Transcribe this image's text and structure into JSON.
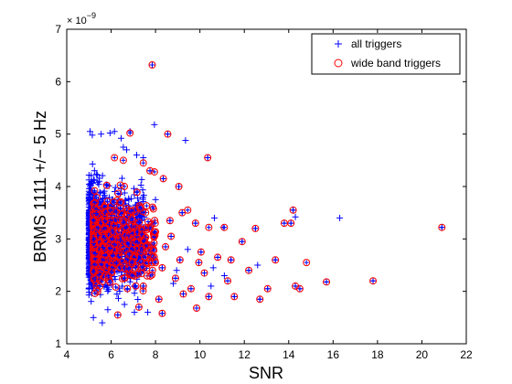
{
  "chart_data": {
    "type": "scatter",
    "title": "",
    "xlabel": "SNR",
    "ylabel": "BRMS 1111 +/− 5 Hz",
    "y_multiplier": {
      "base": "× 10",
      "exponent": "−9"
    },
    "xlim": [
      4,
      22
    ],
    "ylim": [
      1,
      7
    ],
    "xticks": [
      "4",
      "6",
      "8",
      "10",
      "12",
      "14",
      "16",
      "18",
      "20",
      "22"
    ],
    "yticks": [
      "1",
      "2",
      "3",
      "4",
      "5",
      "6",
      "7"
    ],
    "grid": false,
    "legend_position": "top-right",
    "colors": {
      "all_triggers": "#0000ff",
      "wide_band_triggers": "#ff0000"
    },
    "series": [
      {
        "name": "all triggers",
        "marker": "plus",
        "points": [
          [
            7.85,
            6.32
          ],
          [
            5.05,
            5.05
          ],
          [
            5.15,
            4.98
          ],
          [
            5.55,
            5.0
          ],
          [
            5.95,
            5.02
          ],
          [
            6.15,
            5.05
          ],
          [
            6.45,
            4.92
          ],
          [
            6.85,
            5.05
          ],
          [
            7.95,
            5.18
          ],
          [
            8.55,
            5.0
          ],
          [
            9.35,
            4.88
          ],
          [
            10.35,
            4.55
          ],
          [
            9.05,
            4.0
          ],
          [
            10.65,
            3.4
          ],
          [
            16.3,
            3.4
          ],
          [
            14.3,
            3.42
          ],
          [
            14.2,
            3.55
          ],
          [
            11.05,
            3.22
          ],
          [
            11.9,
            2.95
          ],
          [
            12.5,
            3.2
          ],
          [
            13.8,
            3.3
          ],
          [
            14.1,
            3.3
          ],
          [
            20.9,
            3.22
          ],
          [
            17.8,
            2.2
          ],
          [
            15.7,
            2.18
          ],
          [
            14.5,
            2.05
          ],
          [
            13.05,
            2.05
          ],
          [
            12.7,
            1.85
          ],
          [
            11.55,
            1.9
          ],
          [
            10.4,
            1.9
          ],
          [
            9.85,
            1.68
          ],
          [
            8.3,
            1.58
          ],
          [
            5.6,
            1.4
          ],
          [
            5.2,
            1.5
          ],
          [
            6.3,
            1.55
          ],
          [
            7.05,
            1.6
          ],
          [
            11.1,
            2.3
          ],
          [
            12.2,
            2.4
          ],
          [
            13.4,
            2.6
          ],
          [
            14.3,
            2.1
          ],
          [
            9.8,
            3.3
          ],
          [
            9.2,
            3.5
          ],
          [
            10.8,
            2.65
          ],
          [
            11.4,
            2.6
          ],
          [
            12.6,
            2.5
          ],
          [
            10.2,
            2.35
          ],
          [
            10.6,
            2.45
          ],
          [
            9.6,
            2.05
          ],
          [
            8.9,
            2.25
          ],
          [
            8.8,
            2.15
          ],
          [
            8.3,
            2.45
          ],
          [
            8.7,
            3.05
          ],
          [
            8.0,
            3.75
          ],
          [
            8.35,
            4.15
          ],
          [
            7.75,
            4.3
          ],
          [
            7.45,
            4.55
          ],
          [
            7.15,
            4.6
          ],
          [
            6.7,
            4.7
          ],
          [
            6.55,
            4.75
          ],
          [
            8.45,
            2.85
          ],
          [
            8.65,
            3.35
          ],
          [
            9.1,
            2.6
          ],
          [
            9.45,
            2.8
          ],
          [
            10.05,
            2.75
          ],
          [
            9.95,
            2.55
          ],
          [
            10.5,
            2.1
          ],
          [
            11.25,
            2.2
          ],
          [
            9.25,
            1.95
          ],
          [
            8.95,
            2.4
          ],
          [
            7.25,
            1.7
          ],
          [
            6.6,
            1.75
          ],
          [
            5.85,
            1.65
          ],
          [
            7.65,
            1.6
          ],
          [
            7.45,
            2.1
          ],
          [
            8.15,
            1.85
          ]
        ],
        "dense_core": {
          "x_range": [
            5.0,
            7.5
          ],
          "y_range": [
            1.5,
            4.6
          ],
          "count": 1200
        }
      },
      {
        "name": "wide band triggers",
        "marker": "circle",
        "points": [
          [
            7.85,
            6.32
          ],
          [
            6.85,
            5.02
          ],
          [
            8.55,
            5.0
          ],
          [
            10.35,
            4.55
          ],
          [
            6.15,
            4.55
          ],
          [
            7.95,
            4.28
          ],
          [
            8.35,
            4.15
          ],
          [
            9.05,
            4.0
          ],
          [
            9.45,
            3.55
          ],
          [
            10.4,
            3.22
          ],
          [
            11.1,
            3.22
          ],
          [
            12.5,
            3.2
          ],
          [
            13.8,
            3.3
          ],
          [
            14.2,
            3.55
          ],
          [
            14.1,
            3.3
          ],
          [
            20.9,
            3.22
          ],
          [
            17.8,
            2.2
          ],
          [
            15.7,
            2.18
          ],
          [
            14.5,
            2.05
          ],
          [
            13.05,
            2.05
          ],
          [
            12.7,
            1.85
          ],
          [
            11.55,
            1.9
          ],
          [
            10.4,
            1.9
          ],
          [
            9.85,
            1.68
          ],
          [
            11.9,
            2.95
          ],
          [
            11.4,
            2.6
          ],
          [
            12.2,
            2.4
          ],
          [
            13.4,
            2.6
          ],
          [
            14.3,
            2.1
          ],
          [
            14.8,
            2.55
          ],
          [
            10.8,
            2.65
          ],
          [
            10.2,
            2.35
          ],
          [
            9.6,
            2.05
          ],
          [
            8.9,
            2.25
          ],
          [
            8.3,
            2.45
          ],
          [
            8.7,
            3.05
          ],
          [
            7.75,
            4.3
          ],
          [
            7.45,
            4.45
          ],
          [
            9.2,
            3.5
          ],
          [
            9.8,
            3.3
          ],
          [
            11.25,
            2.2
          ],
          [
            9.95,
            2.55
          ],
          [
            10.05,
            2.75
          ],
          [
            9.1,
            2.6
          ],
          [
            8.45,
            2.85
          ],
          [
            8.65,
            3.35
          ],
          [
            7.25,
            1.7
          ],
          [
            6.3,
            1.55
          ],
          [
            8.3,
            1.58
          ],
          [
            9.25,
            1.95
          ],
          [
            7.45,
            2.1
          ],
          [
            8.15,
            1.85
          ],
          [
            6.55,
            4.5
          ]
        ],
        "dense_core": {
          "x_range": [
            5.2,
            8.0
          ],
          "y_range": [
            1.7,
            4.2
          ],
          "count": 600
        }
      }
    ]
  }
}
